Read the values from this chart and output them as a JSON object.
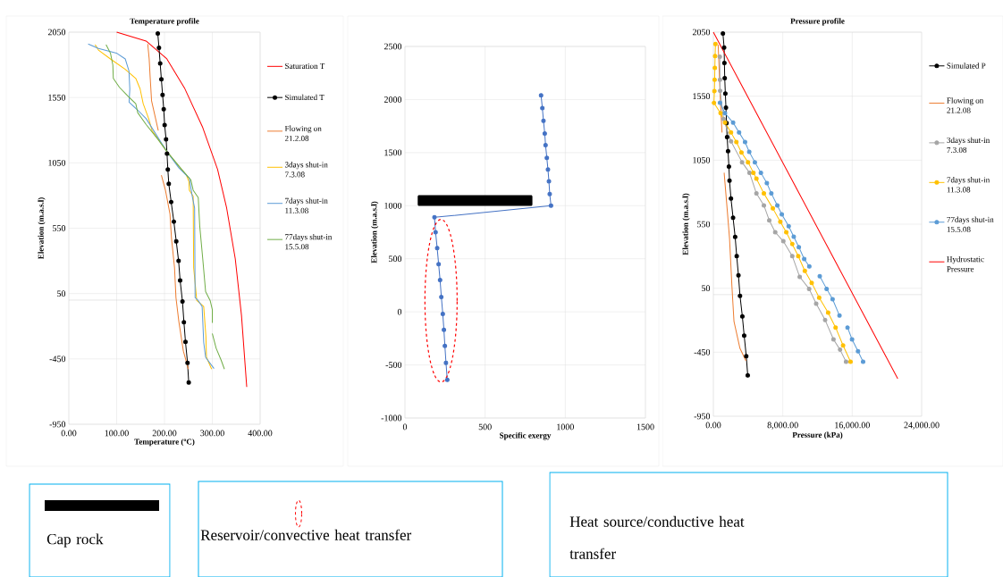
{
  "chart_data": [
    {
      "type": "line",
      "title": "Temperature  profile",
      "xlabel": "Temperature (ºC)",
      "ylabel": "Elevation (m.a.s.l)",
      "xlim": [
        0,
        400
      ],
      "xticks": [
        {
          "value": 0,
          "label": "0.00"
        },
        {
          "value": 100,
          "label": "100.00"
        },
        {
          "value": 200,
          "label": "200.00"
        },
        {
          "value": 300,
          "label": "300.00"
        },
        {
          "value": 400,
          "label": "400.00"
        }
      ],
      "ylim": [
        -950,
        2050
      ],
      "yticks": [
        -950,
        -450,
        50,
        550,
        1050,
        1550,
        2050
      ],
      "grid": true,
      "legend": "right",
      "ref_lines": [
        {
          "axis": "y",
          "value": 0,
          "color": "#bfbfbf"
        }
      ],
      "series": [
        {
          "name": "Saturation T",
          "color": "#ff0000",
          "marker": "none",
          "x": [
            100,
            161.6,
            205,
            242.6,
            280,
            311,
            330,
            348,
            361,
            372
          ],
          "values": [
            2050,
            1982,
            1845,
            1617,
            1320,
            1000,
            704,
            316,
            -117,
            -665
          ]
        },
        {
          "name": "Simulated  T",
          "color": "#000000",
          "marker": "circle",
          "x": [
            186,
            188.5,
            191,
            193.5,
            196,
            198.4,
            200.3,
            203.4,
            205.3,
            207,
            209,
            214,
            219.6,
            224.6,
            229.5,
            232.7,
            237.6,
            240.7,
            243.9,
            248.2,
            250.7
          ],
          "values": [
            2040,
            1930,
            1810,
            1690,
            1570,
            1460,
            1340,
            1230,
            1120,
            1000,
            890,
            750,
            600,
            450,
            300,
            150,
            -10,
            -170,
            -320,
            -480,
            -630
          ]
        },
        {
          "name": "Flowing on 21.2.08",
          "color": "#ed7d31",
          "marker": "none",
          "x": [
            165,
            168,
            170,
            173,
            180,
            187,
            null,
            193.5,
            202,
            211.5,
            214.6,
            221,
            224,
            230,
            239.5,
            250
          ],
          "values": [
            1959,
            1845,
            1708,
            1525,
            1411,
            1297,
            null,
            955,
            841,
            658,
            476,
            248,
            19,
            -163,
            -391,
            -528
          ]
        },
        {
          "name": "3days shut-in 7.3.08",
          "color": "#ffc000",
          "marker": "none",
          "x": [
            55,
            62,
            87,
            118,
            140,
            149,
            155.5,
            167,
            174,
            205,
            230,
            246,
            251,
            252,
            260,
            261,
            267.5,
            282,
            286.6,
            287.8,
            298.6
          ],
          "values": [
            1954,
            1913,
            1845,
            1765,
            1696,
            1616,
            1502,
            1388,
            1297,
            1137,
            1023,
            955,
            909,
            841,
            795,
            248,
            -3,
            -49,
            -277,
            -437,
            -528
          ]
        },
        {
          "name": "7days shut-in 11.3.08",
          "color": "#5b9bd5",
          "marker": "none",
          "x": [
            40.4,
            62,
            99.5,
            118,
            125.7,
            127.5,
            126,
            143,
            161.7,
            193,
            205,
            230,
            252,
            258,
            263,
            264,
            270.5,
            278.7,
            282,
            286,
            303.6
          ],
          "values": [
            1959,
            1925,
            1890,
            1845,
            1753,
            1616,
            1514,
            1457,
            1388,
            1206,
            1137,
            1012,
            932,
            795,
            704,
            19,
            -3,
            -49,
            -323,
            -437,
            -524
          ]
        },
        {
          "name": "77days shut-in 15.5.08",
          "color": "#70ad47",
          "marker": "none",
          "x": [
            77.8,
            87,
            92,
            93,
            105.8,
            124,
            140,
            144,
            161.7,
            186.6,
            205,
            236,
            255,
            260,
            270.6,
            273.7,
            280,
            286,
            295.5,
            300,
            300,
            null,
            300,
            308,
            318.5,
            325.3
          ],
          "values": [
            1954,
            1890,
            1799,
            1696,
            1628,
            1559,
            1502,
            1434,
            1343,
            1229,
            1137,
            1000,
            921,
            841,
            784,
            567,
            316,
            65,
            -3,
            -72,
            -175,
            null,
            -255,
            -368,
            -460,
            -528
          ]
        }
      ]
    },
    {
      "type": "line",
      "xlabel": "Specific exergy",
      "ylabel": "Elevation (m.a.s.l)",
      "xlim": [
        0,
        1500
      ],
      "xticks": [
        0,
        500,
        1000,
        1500
      ],
      "ylim": [
        -1000,
        2500
      ],
      "yticks": [
        -1000,
        -500,
        0,
        500,
        1000,
        1500,
        2000,
        2500
      ],
      "grid": true,
      "annotations": [
        "Cap rock",
        "Reservoir/convective heat transfer",
        "Heat source/conductive heat transfer"
      ],
      "series": [
        {
          "color": "#4472c4",
          "marker": "circle",
          "x": [
            849,
            857,
            864,
            872,
            877,
            885,
            892,
            898,
            903,
            911,
            184,
            191,
            201,
            210,
            219,
            227,
            236,
            243,
            249,
            256,
            264
          ],
          "values": [
            2040,
            1920,
            1800,
            1680,
            1570,
            1450,
            1340,
            1230,
            1110,
            1000,
            890,
            750,
            600,
            450,
            300,
            140,
            -20,
            -170,
            -320,
            -480,
            -640
          ]
        }
      ]
    },
    {
      "type": "line",
      "title": "Pressure profile",
      "xlabel": "Pressure (kPa)",
      "ylabel": "Elevation (m.a.s.l)",
      "xlim": [
        0,
        24000
      ],
      "xticks": [
        {
          "value": 0,
          "label": "0.00"
        },
        {
          "value": 8000,
          "label": "8,000.00"
        },
        {
          "value": 16000,
          "label": "16,000.00"
        },
        {
          "value": 24000,
          "label": "24,000.00"
        }
      ],
      "ylim": [
        -950,
        2050
      ],
      "yticks": [
        -950,
        -450,
        50,
        550,
        1050,
        1550,
        2050
      ],
      "grid": true,
      "legend": "right",
      "ref_lines": [
        {
          "axis": "y",
          "value": 0,
          "color": "#bfbfbf"
        }
      ],
      "series": [
        {
          "name": "Simulated P",
          "color": "#000000",
          "marker": "circle",
          "x": [
            1100,
            1240,
            1270,
            1310,
            1380,
            1450,
            1520,
            1580,
            1690,
            1790,
            1860,
            2030,
            2270,
            2510,
            2690,
            2890,
            3070,
            3340,
            3550,
            3790,
            3960
          ],
          "values": [
            2040,
            1930,
            1810,
            1690,
            1570,
            1460,
            1340,
            1230,
            1120,
            1000,
            890,
            750,
            600,
            450,
            300,
            150,
            -10,
            -170,
            -320,
            -480,
            -630
          ]
        },
        {
          "name": "Flowing on 21.2.08",
          "color": "#ed7d31",
          "marker": "none",
          "x": [
            551,
            689,
            826,
            999,
            null,
            1240,
            1584,
            1860,
            2135,
            2376,
            3065,
            3753
          ],
          "values": [
            1952,
            1720,
            1487,
            1266,
            null,
            952,
            673,
            441,
            69,
            -210,
            -420,
            -517
          ]
        },
        {
          "name": "3days shut-in 7.3.08",
          "color": "#a5a5a5",
          "marker": "circle",
          "x": [
            740,
            760,
            780,
            1171,
            2032,
            3306,
            4167,
            4959,
            5820,
            6439,
            7128,
            8058,
            9091,
            9952,
            11033,
            11846,
            12879,
            13843,
            14601,
            15289
          ],
          "values": [
            1859,
            1678,
            1592,
            1371,
            1197,
            1034,
            952,
            790,
            697,
            580,
            487,
            417,
            301,
            138,
            45,
            -71,
            -199,
            -350,
            -431,
            -524
          ]
        },
        {
          "name": "7days shut-in 11.3.08",
          "color": "#ffc000",
          "marker": "circle",
          "x": [
            241,
            200,
            172,
            150,
            120,
            69,
            826,
            1343,
            2032,
            2651,
            3237,
            3994,
            4614,
            4959,
            5820,
            6853,
            7713,
            8402,
            9091,
            9780,
            10537,
            11329,
            12190,
            13223,
            14084,
            14945,
            15806
          ],
          "values": [
            1957,
            1864,
            1771,
            1678,
            1590,
            1497,
            1417,
            1343,
            1266,
            1192,
            1110,
            1034,
            952,
            906,
            790,
            673,
            569,
            487,
            394,
            301,
            185,
            92,
            -24,
            -141,
            -257,
            -397,
            -524
          ]
        },
        {
          "name": "77days shut-in 15.5.08",
          "color": "#5b9bd5",
          "marker": "circle",
          "x": [
            758,
            1343,
            2273,
            2961,
            3650,
            4132,
            4787,
            5475,
            6164,
            6680,
            7369,
            7886,
            8678,
            9263,
            9849,
            10468,
            11054,
            null,
            12259,
            13051,
            13740,
            14532,
            null,
            15461,
            15978,
            16667,
            17252
          ],
          "values": [
            1499,
            1417,
            1343,
            1266,
            1192,
            1115,
            1034,
            952,
            871,
            790,
            697,
            627,
            534,
            452,
            371,
            278,
            220,
            null,
            143,
            45,
            -36,
            -164,
            null,
            -257,
            -350,
            -443,
            -524
          ]
        },
        {
          "name": "Hydrostatic Pressure",
          "color": "#ff0000",
          "marker": "none",
          "x": [
            0,
            21246
          ],
          "values": [
            2050,
            -657
          ]
        }
      ]
    }
  ]
}
